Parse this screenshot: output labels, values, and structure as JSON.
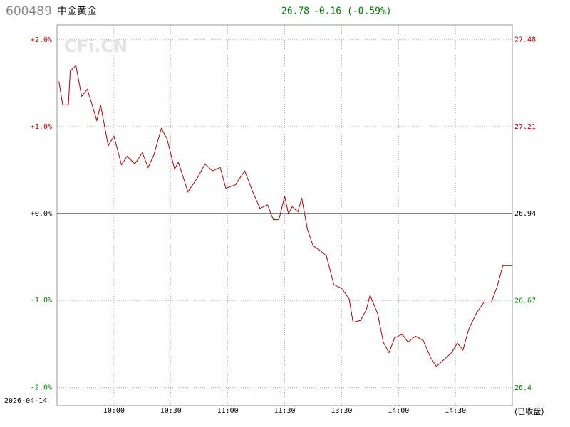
{
  "header": {
    "code": "600489",
    "name": "中金黄金",
    "price": "26.78",
    "change": "-0.16",
    "change_pct": "(-0.59%)"
  },
  "chart_data": {
    "type": "line",
    "watermark": "CFi.CN",
    "date": "2026-04-14",
    "status": "(已收盘)",
    "color": "#b00000",
    "x": [
      "09:31",
      "09:33",
      "09:36",
      "09:37",
      "09:40",
      "09:43",
      "09:46",
      "09:51",
      "09:53",
      "09:57",
      "10:00",
      "10:04",
      "10:07",
      "10:11",
      "10:15",
      "10:18",
      "10:21",
      "10:25",
      "10:28",
      "10:32",
      "10:34",
      "10:39",
      "10:44",
      "10:48",
      "10:52",
      "10:56",
      "10:59",
      "11:04",
      "11:09",
      "11:13",
      "11:17",
      "11:21",
      "11:24",
      "11:27",
      "11:30",
      "13:02",
      "13:04",
      "13:07",
      "13:09",
      "13:12",
      "13:15",
      "13:19",
      "13:22",
      "13:26",
      "13:30",
      "13:34",
      "13:36",
      "13:40",
      "13:43",
      "13:45",
      "13:49",
      "13:52",
      "13:55",
      "13:58",
      "14:02",
      "14:05",
      "14:09",
      "14:13",
      "14:17",
      "14:20",
      "14:24",
      "14:28",
      "14:31",
      "14:34",
      "14:37",
      "14:41",
      "14:45",
      "14:49",
      "14:52",
      "14:55",
      "14:59",
      "15:00"
    ],
    "values": [
      1.52,
      1.25,
      1.25,
      1.64,
      1.7,
      1.35,
      1.43,
      1.07,
      1.25,
      0.78,
      0.89,
      0.56,
      0.66,
      0.57,
      0.7,
      0.53,
      0.67,
      0.98,
      0.86,
      0.51,
      0.59,
      0.25,
      0.41,
      0.57,
      0.49,
      0.53,
      0.29,
      0.33,
      0.49,
      0.26,
      0.06,
      0.1,
      -0.07,
      -0.07,
      0.2,
      0,
      0.08,
      0.02,
      0.18,
      -0.18,
      -0.37,
      -0.43,
      -0.49,
      -0.82,
      -0.86,
      -0.98,
      -1.25,
      -1.23,
      -1.11,
      -0.94,
      -1.15,
      -1.48,
      -1.6,
      -1.43,
      -1.39,
      -1.48,
      -1.41,
      -1.46,
      -1.66,
      -1.76,
      -1.68,
      -1.6,
      -1.49,
      -1.57,
      -1.33,
      -1.15,
      -1.02,
      -1.02,
      -0.84,
      -0.6,
      -0.6,
      -0.6
    ],
    "xticks": [
      "10:00",
      "10:30",
      "11:00",
      "11:30",
      "13:30",
      "14:00",
      "14:30"
    ],
    "ylim": [
      -2.21,
      2.17
    ],
    "yticks": [
      {
        "value": 2,
        "label": "+2.0%"
      },
      {
        "value": 1,
        "label": "+1.0%"
      },
      {
        "value": 0,
        "label": "+0.0%"
      },
      {
        "value": -1,
        "label": "-1.0%"
      },
      {
        "value": -2,
        "label": "-2.0%"
      }
    ],
    "y2lim": [
      26.345,
      27.525
    ],
    "y2ticks": [
      27.48,
      27.21,
      26.94,
      26.67,
      26.4
    ],
    "y2ref": 26.94,
    "grid": true
  }
}
